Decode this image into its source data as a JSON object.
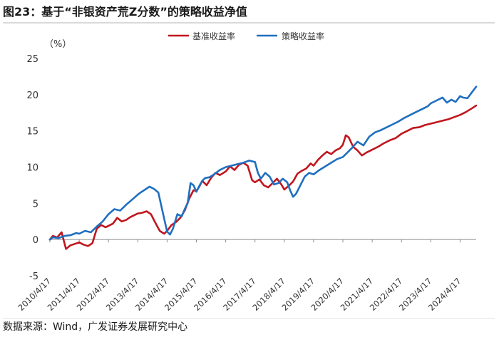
{
  "title": "图23：基于“非银资产荒Z分数”的策略收益净值",
  "source": "数据来源：Wind，广发证券发展研究中心",
  "chart_data": {
    "type": "line",
    "title": "图23：基于“非银资产荒Z分数”的策略收益净值",
    "ylabel": "（%）",
    "xlabel": "",
    "ylim": [
      -5,
      25
    ],
    "yticks": [
      -5,
      0,
      5,
      10,
      15,
      20,
      25
    ],
    "xticks": [
      "2010/4/17",
      "2011/4/17",
      "2012/4/17",
      "2013/4/17",
      "2014/4/17",
      "2015/4/17",
      "2016/4/17",
      "2017/4/17",
      "2018/4/17",
      "2019/4/17",
      "2020/4/17",
      "2021/4/17",
      "2022/4/17",
      "2023/4/17",
      "2024/4/17"
    ],
    "grid": false,
    "legend": "top-center",
    "series": [
      {
        "name": "基准收益率",
        "color": "#c0161e",
        "x": [
          2010.0,
          2010.1,
          2010.25,
          2010.4,
          2010.55,
          2010.7,
          2010.85,
          2011.0,
          2011.15,
          2011.3,
          2011.45,
          2011.6,
          2011.75,
          2011.9,
          2012.0,
          2012.15,
          2012.3,
          2012.45,
          2012.6,
          2012.75,
          2012.9,
          2013.0,
          2013.15,
          2013.3,
          2013.45,
          2013.6,
          2013.75,
          2013.9,
          2014.0,
          2014.15,
          2014.3,
          2014.45,
          2014.6,
          2014.75,
          2014.9,
          2015.0,
          2015.1,
          2015.2,
          2015.35,
          2015.5,
          2015.65,
          2015.8,
          2016.0,
          2016.15,
          2016.3,
          2016.45,
          2016.6,
          2016.75,
          2016.9,
          2017.0,
          2017.15,
          2017.3,
          2017.45,
          2017.6,
          2017.75,
          2017.9,
          2018.0,
          2018.15,
          2018.3,
          2018.45,
          2018.6,
          2018.75,
          2018.9,
          2019.0,
          2019.15,
          2019.3,
          2019.45,
          2019.6,
          2019.75,
          2019.9,
          2020.0,
          2020.1,
          2020.2,
          2020.35,
          2020.5,
          2020.65,
          2020.8,
          2021.0,
          2021.2,
          2021.4,
          2021.6,
          2021.8,
          2022.0,
          2022.2,
          2022.4,
          2022.6,
          2022.8,
          2023.0,
          2023.2,
          2023.4,
          2023.6,
          2023.8,
          2024.0,
          2024.2,
          2024.4,
          2024.55
        ],
        "values": [
          0.0,
          0.5,
          0.3,
          1.0,
          -1.3,
          -0.8,
          -0.6,
          -0.4,
          -0.7,
          -0.9,
          -0.5,
          1.5,
          2.0,
          1.7,
          1.9,
          2.2,
          3.0,
          2.5,
          2.7,
          3.1,
          3.4,
          3.6,
          3.7,
          3.9,
          3.5,
          2.3,
          1.2,
          0.8,
          1.2,
          2.0,
          2.4,
          3.0,
          4.0,
          5.6,
          6.8,
          6.7,
          7.3,
          8.1,
          7.5,
          8.5,
          9.2,
          8.9,
          9.4,
          10.1,
          9.6,
          10.3,
          10.6,
          10.2,
          8.2,
          7.9,
          8.3,
          7.5,
          7.2,
          7.8,
          8.4,
          7.6,
          6.9,
          7.4,
          8.0,
          9.1,
          9.5,
          9.8,
          10.5,
          10.2,
          11.0,
          11.6,
          12.1,
          11.8,
          12.3,
          12.6,
          13.1,
          14.4,
          14.1,
          12.8,
          12.3,
          11.6,
          12.0,
          12.4,
          12.8,
          13.3,
          13.7,
          14.0,
          14.6,
          15.0,
          15.4,
          15.5,
          15.8,
          16.0,
          16.2,
          16.4,
          16.6,
          16.9,
          17.2,
          17.6,
          18.1,
          18.5
        ]
      },
      {
        "name": "策略收益率",
        "color": "#1f6fc0",
        "x": [
          2010.0,
          2010.1,
          2010.3,
          2010.5,
          2010.7,
          2010.9,
          2011.0,
          2011.2,
          2011.4,
          2011.6,
          2011.8,
          2012.0,
          2012.2,
          2012.4,
          2012.6,
          2012.8,
          2013.0,
          2013.1,
          2013.25,
          2013.4,
          2013.55,
          2013.7,
          2013.85,
          2014.0,
          2014.1,
          2014.2,
          2014.35,
          2014.5,
          2014.6,
          2014.7,
          2014.8,
          2014.9,
          2015.0,
          2015.1,
          2015.2,
          2015.3,
          2015.45,
          2015.6,
          2015.8,
          2016.0,
          2016.2,
          2016.4,
          2016.6,
          2016.8,
          2017.0,
          2017.1,
          2017.2,
          2017.35,
          2017.5,
          2017.65,
          2017.8,
          2017.95,
          2018.1,
          2018.2,
          2018.3,
          2018.4,
          2018.55,
          2018.7,
          2018.85,
          2019.0,
          2019.2,
          2019.4,
          2019.6,
          2019.8,
          2020.0,
          2020.15,
          2020.3,
          2020.5,
          2020.7,
          2020.9,
          2021.1,
          2021.3,
          2021.5,
          2021.7,
          2021.9,
          2022.1,
          2022.3,
          2022.5,
          2022.7,
          2022.9,
          2023.0,
          2023.2,
          2023.4,
          2023.55,
          2023.7,
          2023.85,
          2024.0,
          2024.1,
          2024.25,
          2024.4,
          2024.55
        ],
        "values": [
          0.0,
          0.3,
          0.2,
          0.5,
          0.6,
          0.9,
          0.8,
          1.2,
          1.0,
          1.8,
          2.5,
          3.5,
          4.2,
          4.0,
          4.8,
          5.5,
          6.2,
          6.5,
          6.9,
          7.3,
          7.0,
          6.5,
          3.8,
          1.1,
          0.7,
          1.5,
          3.5,
          3.2,
          4.2,
          5.0,
          7.8,
          7.5,
          6.6,
          7.4,
          8.1,
          8.5,
          8.6,
          9.0,
          9.6,
          10.0,
          10.2,
          10.4,
          10.6,
          10.9,
          10.7,
          9.2,
          8.4,
          9.2,
          8.7,
          7.6,
          7.8,
          8.4,
          7.9,
          6.8,
          5.9,
          6.3,
          7.5,
          8.7,
          9.2,
          9.0,
          9.6,
          10.1,
          10.6,
          11.1,
          11.4,
          12.0,
          12.6,
          13.5,
          13.0,
          14.2,
          14.8,
          15.1,
          15.5,
          15.9,
          16.3,
          16.8,
          17.2,
          17.6,
          18.0,
          18.4,
          18.8,
          19.2,
          19.6,
          18.9,
          19.3,
          19.0,
          19.8,
          19.6,
          19.5,
          20.3,
          21.1
        ]
      }
    ]
  }
}
